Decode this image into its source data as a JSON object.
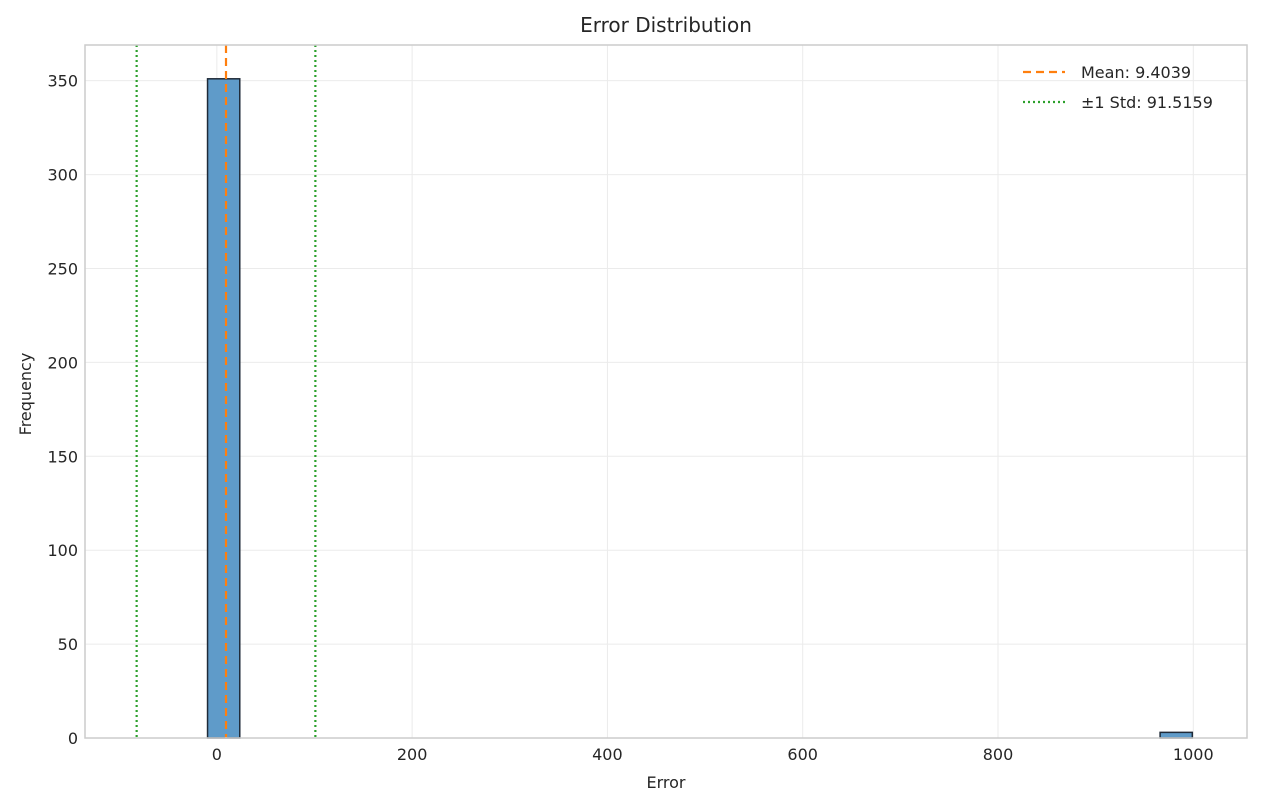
{
  "chart_data": {
    "type": "bar",
    "title": "Error Distribution",
    "xlabel": "Error",
    "ylabel": "Frequency",
    "xlim": [
      -135,
      1055
    ],
    "ylim": [
      0,
      369
    ],
    "xticks": [
      0,
      200,
      400,
      600,
      800,
      1000
    ],
    "yticks": [
      0,
      50,
      100,
      150,
      200,
      250,
      300,
      350
    ],
    "grid": true,
    "legend_position": "top-right",
    "bins": [
      {
        "x0": -9.5,
        "x1": 23.5,
        "count": 351
      },
      {
        "x0": 966.0,
        "x1": 999.0,
        "count": 3
      }
    ],
    "lines": [
      {
        "label": "Mean: 9.4039",
        "x": 9.4039,
        "style": "dashed",
        "color": "#ff7f0e"
      },
      {
        "label": "±1 Std: 91.5159",
        "x": -82.112,
        "style": "dotted",
        "color": "#2ca02c"
      },
      {
        "label": "",
        "x": 100.9198,
        "style": "dotted",
        "color": "#2ca02c"
      }
    ],
    "legend": [
      {
        "label": "Mean: 9.4039",
        "style": "dashed",
        "color": "#ff7f0e"
      },
      {
        "label": "±1 Std: 91.5159",
        "style": "dotted",
        "color": "#2ca02c"
      }
    ],
    "colors": {
      "bar_fill": "#5f9bc9",
      "bar_edge": "#1f2a38",
      "grid": "#ebebeb",
      "axes_edge": "#cccccc"
    }
  }
}
